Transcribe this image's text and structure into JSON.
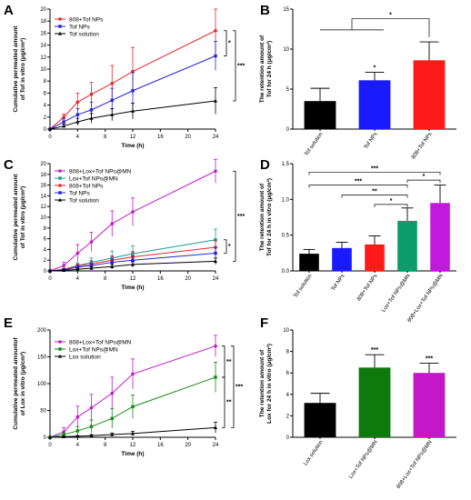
{
  "chart_data": [
    {
      "panel": "A",
      "type": "line",
      "ylabel_lines": [
        "Cumulative permeated amount",
        "of Tof in vitro (μg/cm²)"
      ],
      "xlabel": "Time (h)",
      "xlim": [
        0,
        24
      ],
      "ylim": [
        0,
        20
      ],
      "xticks": [
        0,
        4,
        8,
        12,
        16,
        20,
        24
      ],
      "yticks": [
        0,
        2,
        4,
        6,
        8,
        10,
        12,
        14,
        16,
        18,
        20
      ],
      "x": [
        0,
        2,
        4,
        6,
        9,
        12,
        24
      ],
      "series": [
        {
          "name": "808+Tof NPs",
          "color": "#e8242b",
          "marker": "circle",
          "values": [
            0,
            2.0,
            4.5,
            5.8,
            7.6,
            9.6,
            16.4
          ],
          "errors": [
            0,
            0.5,
            1.5,
            2.0,
            3.0,
            4.0,
            3.6
          ]
        },
        {
          "name": "Tof NPs",
          "color": "#2424d9",
          "marker": "square",
          "values": [
            0,
            1.2,
            2.4,
            3.2,
            4.8,
            6.4,
            12.2
          ],
          "errors": [
            0,
            0.5,
            1.0,
            1.3,
            2.0,
            3.0,
            2.4
          ]
        },
        {
          "name": "Tof solution",
          "color": "#000000",
          "marker": "triangle",
          "values": [
            0,
            0.5,
            1.2,
            1.8,
            2.4,
            3.0,
            4.7
          ],
          "errors": [
            0,
            0.3,
            0.6,
            0.8,
            1.0,
            1.3,
            2.2
          ]
        }
      ],
      "significance": [
        "*",
        "***"
      ]
    },
    {
      "panel": "B",
      "type": "bar",
      "ylabel_lines": [
        "The retention amount of",
        "Tof for 24 h (μg/cm²)"
      ],
      "ylim": [
        0,
        15
      ],
      "yticks": [
        0,
        5,
        10,
        15
      ],
      "categories": [
        "Tof solution",
        "Tof NPs",
        "808+Tof NPs"
      ],
      "colors": [
        "#000000",
        "#1a1aff",
        "#ff1a1a"
      ],
      "values": [
        3.5,
        6.1,
        8.6
      ],
      "errors": [
        1.6,
        1.0,
        2.3
      ],
      "significance": [
        "*",
        "*"
      ]
    },
    {
      "panel": "C",
      "type": "line",
      "ylabel_lines": [
        "Cumulative permeated amount",
        "of Tof in vitro (μg/cm²)"
      ],
      "xlabel": "Time (h)",
      "xlim": [
        0,
        24
      ],
      "ylim": [
        0,
        20
      ],
      "xticks": [
        0,
        4,
        8,
        12,
        16,
        20,
        24
      ],
      "yticks": [
        0,
        2,
        4,
        6,
        8,
        10,
        12,
        14,
        16,
        18,
        20
      ],
      "x": [
        0,
        2,
        4,
        6,
        9,
        12,
        24
      ],
      "series": [
        {
          "name": "808+Lox+Tof NPs@MN",
          "color": "#c318c9",
          "marker": "circle",
          "values": [
            0,
            1.0,
            3.3,
            5.4,
            8.8,
            11.0,
            18.6
          ],
          "errors": [
            0,
            0.6,
            1.6,
            1.8,
            2.4,
            2.6,
            2.2
          ]
        },
        {
          "name": "Lox+Tof NPs@MN",
          "color": "#18a08c",
          "marker": "square",
          "values": [
            0,
            0.3,
            1.0,
            1.6,
            2.4,
            3.2,
            5.8
          ],
          "errors": [
            0,
            0.2,
            0.5,
            0.8,
            1.3,
            1.5,
            2.0
          ]
        },
        {
          "name": "808+Tof NPs",
          "color": "#e8242b",
          "marker": "circle",
          "values": [
            0,
            0.3,
            0.9,
            1.3,
            2.0,
            2.6,
            4.4
          ],
          "errors": [
            0,
            0.2,
            0.4,
            0.6,
            0.8,
            1.0,
            1.2
          ]
        },
        {
          "name": "Tof NPs",
          "color": "#2424d9",
          "marker": "square",
          "values": [
            0,
            0.2,
            0.7,
            1.0,
            1.6,
            2.0,
            3.3
          ],
          "errors": [
            0,
            0.2,
            0.3,
            0.4,
            0.6,
            0.8,
            1.0
          ]
        },
        {
          "name": "Tof solution",
          "color": "#000000",
          "marker": "triangle",
          "values": [
            0,
            0.1,
            0.3,
            0.5,
            0.8,
            1.2,
            1.8
          ],
          "errors": [
            0,
            0.1,
            0.2,
            0.3,
            0.4,
            0.5,
            0.6
          ]
        }
      ],
      "significance": [
        "*",
        "***"
      ]
    },
    {
      "panel": "D",
      "type": "bar",
      "ylabel_lines": [
        "The retention amount of",
        "Tof for 24 h in vitro (μg/cm²)"
      ],
      "ylim": [
        0,
        1.5
      ],
      "yticks": [
        0.0,
        0.5,
        1.0,
        1.5
      ],
      "ytick_labels": [
        "0.0",
        "0.5",
        "1.0",
        "1.5"
      ],
      "categories": [
        "Tof solution",
        "Tof NPs",
        "808+Tof NPs",
        "Lox+Tof NPs@MN",
        "808+Lox+Tof NPs@MN"
      ],
      "colors": [
        "#000000",
        "#1a1aff",
        "#ff1a1a",
        "#0a9c6a",
        "#c318e0"
      ],
      "values": [
        0.24,
        0.32,
        0.37,
        0.7,
        0.95
      ],
      "errors": [
        0.06,
        0.08,
        0.12,
        0.18,
        0.25
      ],
      "significance": [
        "***",
        "***",
        "**",
        "*",
        "*"
      ]
    },
    {
      "panel": "E",
      "type": "line",
      "ylabel_lines": [
        "Cumulative permeated amountof",
        "of Lox in vitro (μg/cm²)"
      ],
      "xlabel": "Time (h)",
      "xlim": [
        0,
        24
      ],
      "ylim": [
        0,
        200
      ],
      "xticks": [
        0,
        4,
        8,
        12,
        16,
        20,
        24
      ],
      "yticks": [
        0,
        50,
        100,
        150,
        200
      ],
      "x": [
        0,
        2,
        4,
        6,
        9,
        12,
        24
      ],
      "series": [
        {
          "name": "808+Lox+Tof NPs@MN",
          "color": "#c318c9",
          "marker": "circle",
          "values": [
            0,
            10,
            38,
            55,
            82,
            118,
            170
          ],
          "errors": [
            0,
            8,
            20,
            25,
            30,
            28,
            20
          ]
        },
        {
          "name": "Lox+Tof NPs@MN",
          "color": "#168a16",
          "marker": "square",
          "values": [
            0,
            5,
            12,
            20,
            35,
            57,
            112
          ],
          "errors": [
            0,
            4,
            8,
            12,
            18,
            22,
            28
          ]
        },
        {
          "name": "Lox solution",
          "color": "#000000",
          "marker": "triangle",
          "values": [
            0,
            1,
            2,
            3,
            5,
            7,
            18
          ],
          "errors": [
            0,
            1,
            1,
            2,
            3,
            4,
            10
          ]
        }
      ],
      "significance": [
        "**",
        "**",
        "***"
      ]
    },
    {
      "panel": "F",
      "type": "bar",
      "ylabel_lines": [
        "The retention amount of",
        "Lox for 24 h in vitro (μg/cm²)"
      ],
      "ylim": [
        0,
        10
      ],
      "yticks": [
        0,
        2,
        4,
        6,
        8,
        10
      ],
      "categories": [
        "Lox solution",
        "Lox+Tof NPs@MN",
        "808+Lox+Tof NPs@MN"
      ],
      "colors": [
        "#000000",
        "#0e7a0e",
        "#c318c9"
      ],
      "values": [
        3.2,
        6.5,
        6.0
      ],
      "errors": [
        0.9,
        1.2,
        0.9
      ],
      "significance": [
        "***",
        "***"
      ]
    }
  ]
}
